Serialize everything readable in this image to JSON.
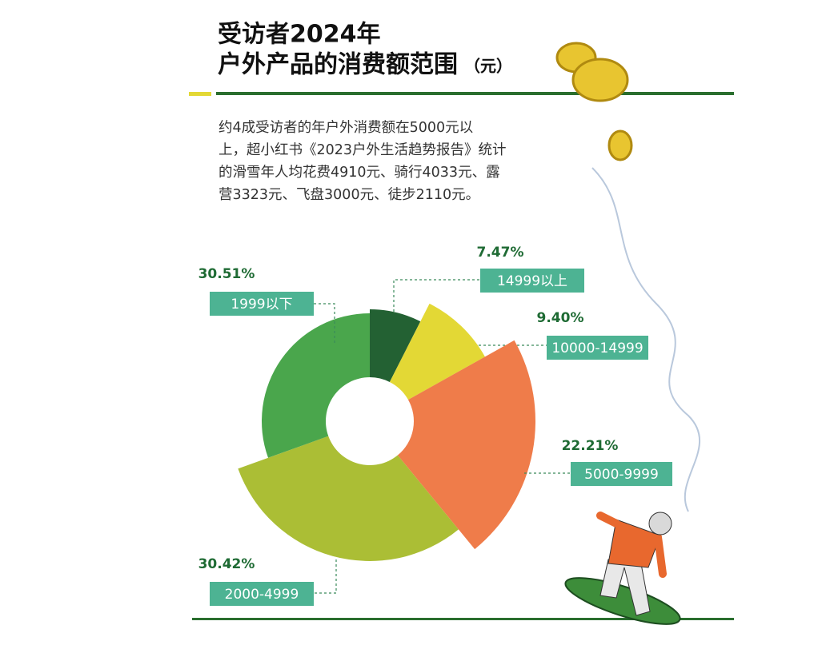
{
  "header": {
    "title_lines": [
      "受访者2024年",
      "户外产品的消费额范围"
    ],
    "title_unit": "（元）"
  },
  "paragraph_lines": [
    "约4成受访者的年户外消费额在5000元以",
    "上，超小红书《2023户外生活趋势报告》统计",
    "的滑雪年人均花费4910元、骑行4033元、露",
    "营3323元、飞盘3000元、徒步2110元。"
  ],
  "chart_data": {
    "type": "rose",
    "categories": [
      "14999以上",
      "10000-14999",
      "5000-9999",
      "2000-4999",
      "1999以下"
    ],
    "values": [
      7.47,
      9.4,
      22.21,
      30.42,
      30.51
    ],
    "value_labels": [
      "7.47%",
      "9.40%",
      "22.21%",
      "30.42%",
      "30.51%"
    ],
    "colors": [
      "#236133",
      "#e3d835",
      "#ef7c4a",
      "#abbe35",
      "#4aa64c"
    ]
  }
}
